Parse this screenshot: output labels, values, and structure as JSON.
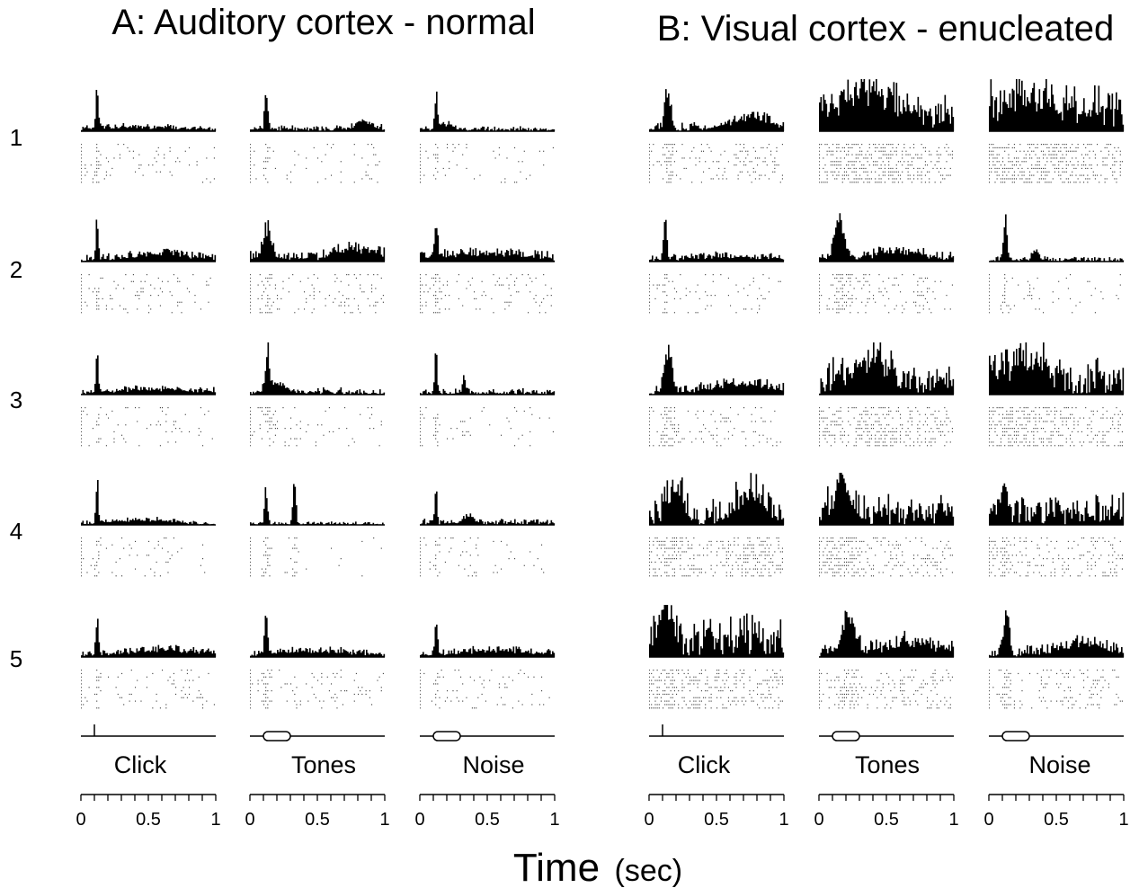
{
  "panels": [
    {
      "title": "A: Auditory cortex - normal"
    },
    {
      "title": "B: Visual cortex - enucleated"
    }
  ],
  "row_labels": [
    "1",
    "2",
    "3",
    "4",
    "5"
  ],
  "stimuli": [
    "Click",
    "Tones",
    "Noise"
  ],
  "axis": {
    "label": "Time",
    "unit": "(sec)",
    "ticks": [
      "0",
      "0.5",
      "1"
    ],
    "range": [
      0,
      1
    ]
  },
  "chart_data": {
    "type": "bar",
    "description_of_plots": "Peri-stimulus time histograms with raster plots; 2 panels x 5 neurons x 3 stimuli",
    "x_range": [
      0,
      1
    ],
    "stimulus_marks": {
      "Click": {
        "kind": "impulse",
        "time": 0.1
      },
      "Tones": {
        "kind": "pulse",
        "onset": 0.1,
        "offset": 0.3
      },
      "Noise": {
        "kind": "pulse",
        "onset": 0.1,
        "offset": 0.3
      }
    },
    "cells": {
      "A": [
        [
          {
            "stim": "Click",
            "profile": [
              {
                "t": 0.12,
                "h": 1.0,
                "w": 0.012
              },
              {
                "t": 0.4,
                "h": 0.06,
                "w": 0.5
              }
            ],
            "base": 0.05,
            "noise": 0.06
          },
          {
            "stim": "Tones",
            "profile": [
              {
                "t": 0.12,
                "h": 0.95,
                "w": 0.015
              },
              {
                "t": 0.85,
                "h": 0.18,
                "w": 0.1
              }
            ],
            "base": 0.05,
            "noise": 0.08
          },
          {
            "stim": "Noise",
            "profile": [
              {
                "t": 0.12,
                "h": 0.95,
                "w": 0.012
              },
              {
                "t": 0.2,
                "h": 0.15,
                "w": 0.08
              }
            ],
            "base": 0.05,
            "noise": 0.05
          }
        ],
        [
          {
            "stim": "Click",
            "profile": [
              {
                "t": 0.12,
                "h": 1.0,
                "w": 0.012
              },
              {
                "t": 0.6,
                "h": 0.15,
                "w": 0.3
              }
            ],
            "base": 0.04,
            "noise": 0.1
          },
          {
            "stim": "Tones",
            "profile": [
              {
                "t": 0.13,
                "h": 0.7,
                "w": 0.04
              },
              {
                "t": 0.8,
                "h": 0.25,
                "w": 0.2
              }
            ],
            "base": 0.08,
            "noise": 0.15
          },
          {
            "stim": "Noise",
            "profile": [
              {
                "t": 0.12,
                "h": 0.9,
                "w": 0.015
              },
              {
                "t": 0.5,
                "h": 0.15,
                "w": 0.4
              }
            ],
            "base": 0.06,
            "noise": 0.12
          }
        ],
        [
          {
            "stim": "Click",
            "profile": [
              {
                "t": 0.12,
                "h": 1.0,
                "w": 0.012
              },
              {
                "t": 0.6,
                "h": 0.1,
                "w": 0.4
              }
            ],
            "base": 0.04,
            "noise": 0.08
          },
          {
            "stim": "Tones",
            "profile": [
              {
                "t": 0.13,
                "h": 0.9,
                "w": 0.02
              },
              {
                "t": 0.2,
                "h": 0.2,
                "w": 0.1
              }
            ],
            "base": 0.05,
            "noise": 0.1
          },
          {
            "stim": "Noise",
            "profile": [
              {
                "t": 0.12,
                "h": 0.95,
                "w": 0.012
              },
              {
                "t": 0.33,
                "h": 0.35,
                "w": 0.02
              }
            ],
            "base": 0.05,
            "noise": 0.08
          }
        ],
        [
          {
            "stim": "Click",
            "profile": [
              {
                "t": 0.12,
                "h": 1.0,
                "w": 0.012
              },
              {
                "t": 0.45,
                "h": 0.1,
                "w": 0.3
              }
            ],
            "base": 0.02,
            "noise": 0.06
          },
          {
            "stim": "Tones",
            "profile": [
              {
                "t": 0.12,
                "h": 0.9,
                "w": 0.015
              },
              {
                "t": 0.33,
                "h": 1.0,
                "w": 0.015
              }
            ],
            "base": 0.02,
            "noise": 0.05
          },
          {
            "stim": "Noise",
            "profile": [
              {
                "t": 0.12,
                "h": 0.9,
                "w": 0.012
              },
              {
                "t": 0.35,
                "h": 0.2,
                "w": 0.05
              }
            ],
            "base": 0.05,
            "noise": 0.08
          }
        ],
        [
          {
            "stim": "Click",
            "profile": [
              {
                "t": 0.12,
                "h": 1.0,
                "w": 0.012
              },
              {
                "t": 0.6,
                "h": 0.12,
                "w": 0.4
              }
            ],
            "base": 0.04,
            "noise": 0.1
          },
          {
            "stim": "Tones",
            "profile": [
              {
                "t": 0.12,
                "h": 0.9,
                "w": 0.015
              },
              {
                "t": 0.5,
                "h": 0.1,
                "w": 0.4
              }
            ],
            "base": 0.05,
            "noise": 0.1
          },
          {
            "stim": "Noise",
            "profile": [
              {
                "t": 0.12,
                "h": 0.95,
                "w": 0.012
              },
              {
                "t": 0.6,
                "h": 0.12,
                "w": 0.4
              }
            ],
            "base": 0.05,
            "noise": 0.08
          }
        ]
      ],
      "B": [
        [
          {
            "stim": "Click",
            "profile": [
              {
                "t": 0.14,
                "h": 0.95,
                "w": 0.03
              },
              {
                "t": 0.75,
                "h": 0.25,
                "w": 0.25
              }
            ],
            "base": 0.04,
            "noise": 0.15
          },
          {
            "stim": "Tones",
            "profile": [
              {
                "t": 0.35,
                "h": 0.6,
                "w": 0.3
              }
            ],
            "base": 0.35,
            "noise": 0.45
          },
          {
            "stim": "Noise",
            "profile": [
              {
                "t": 0.3,
                "h": 0.5,
                "w": 0.3
              }
            ],
            "base": 0.45,
            "noise": 0.5
          }
        ],
        [
          {
            "stim": "Click",
            "profile": [
              {
                "t": 0.12,
                "h": 1.0,
                "w": 0.015
              },
              {
                "t": 0.6,
                "h": 0.08,
                "w": 0.4
              }
            ],
            "base": 0.05,
            "noise": 0.1
          },
          {
            "stim": "Tones",
            "profile": [
              {
                "t": 0.15,
                "h": 0.95,
                "w": 0.05
              },
              {
                "t": 0.6,
                "h": 0.15,
                "w": 0.3
              }
            ],
            "base": 0.08,
            "noise": 0.12
          },
          {
            "stim": "Noise",
            "profile": [
              {
                "t": 0.12,
                "h": 0.95,
                "w": 0.02
              },
              {
                "t": 0.35,
                "h": 0.3,
                "w": 0.03
              }
            ],
            "base": 0.03,
            "noise": 0.08
          }
        ],
        [
          {
            "stim": "Click",
            "profile": [
              {
                "t": 0.14,
                "h": 1.0,
                "w": 0.04
              },
              {
                "t": 0.7,
                "h": 0.2,
                "w": 0.3
              }
            ],
            "base": 0.04,
            "noise": 0.15
          },
          {
            "stim": "Tones",
            "profile": [
              {
                "t": 0.4,
                "h": 0.5,
                "w": 0.2
              }
            ],
            "base": 0.35,
            "noise": 0.4
          },
          {
            "stim": "Noise",
            "profile": [
              {
                "t": 0.25,
                "h": 0.5,
                "w": 0.2
              }
            ],
            "base": 0.45,
            "noise": 0.4
          }
        ],
        [
          {
            "stim": "Click",
            "profile": [
              {
                "t": 0.2,
                "h": 0.7,
                "w": 0.08
              },
              {
                "t": 0.75,
                "h": 0.6,
                "w": 0.15
              }
            ],
            "base": 0.1,
            "noise": 0.5
          },
          {
            "stim": "Tones",
            "profile": [
              {
                "t": 0.17,
                "h": 0.8,
                "w": 0.08
              }
            ],
            "base": 0.35,
            "noise": 0.35
          },
          {
            "stim": "Noise",
            "profile": [
              {
                "t": 0.12,
                "h": 0.85,
                "w": 0.03
              }
            ],
            "base": 0.3,
            "noise": 0.35
          }
        ],
        [
          {
            "stim": "Click",
            "profile": [
              {
                "t": 0.12,
                "h": 0.9,
                "w": 0.05
              }
            ],
            "base": 0.45,
            "noise": 0.45
          },
          {
            "stim": "Tones",
            "profile": [
              {
                "t": 0.22,
                "h": 0.9,
                "w": 0.06
              },
              {
                "t": 0.7,
                "h": 0.25,
                "w": 0.25
              }
            ],
            "base": 0.12,
            "noise": 0.2
          },
          {
            "stim": "Noise",
            "profile": [
              {
                "t": 0.13,
                "h": 0.95,
                "w": 0.03
              },
              {
                "t": 0.7,
                "h": 0.3,
                "w": 0.25
              }
            ],
            "base": 0.05,
            "noise": 0.18
          }
        ]
      ]
    }
  }
}
